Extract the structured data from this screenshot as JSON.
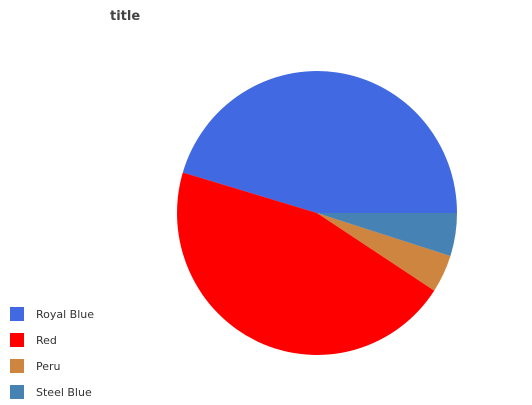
{
  "chart_data": {
    "type": "pie",
    "title": "title",
    "legend_position": "bottom-left",
    "series": [
      {
        "name": "Royal Blue",
        "value": 45.4,
        "color": "#4169e1"
      },
      {
        "name": "Red",
        "value": 45.4,
        "color": "#ff0000"
      },
      {
        "name": "Peru",
        "value": 4.3,
        "color": "#cd853f"
      },
      {
        "name": "Steel Blue",
        "value": 4.9,
        "color": "#4682b4"
      }
    ]
  }
}
